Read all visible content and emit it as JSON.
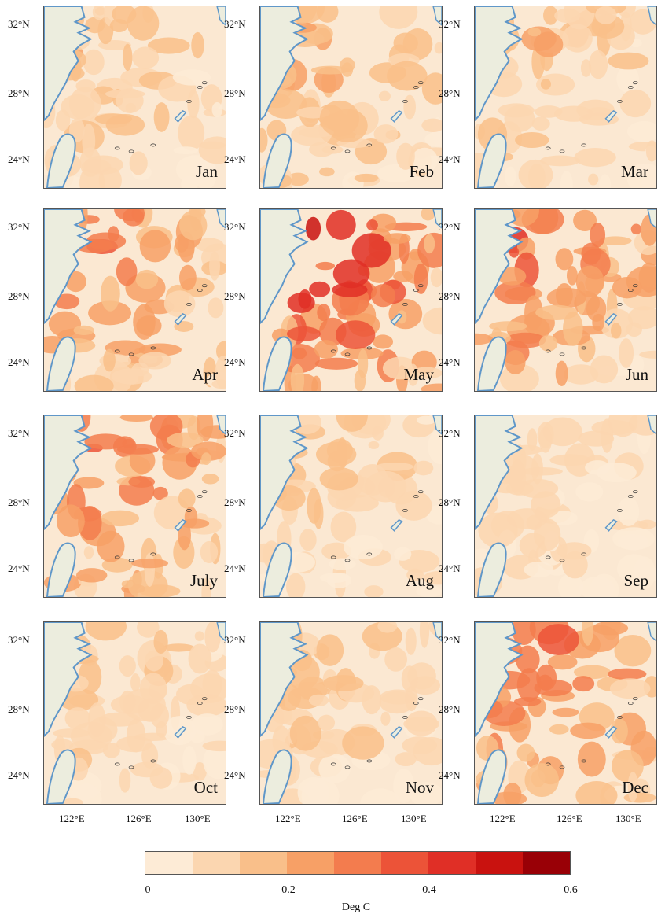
{
  "panels": [
    {
      "month": "Jan",
      "intensity": 0.22
    },
    {
      "month": "Feb",
      "intensity": 0.28
    },
    {
      "month": "Mar",
      "intensity": 0.22
    },
    {
      "month": "Apr",
      "intensity": 0.38
    },
    {
      "month": "May",
      "intensity": 0.55
    },
    {
      "month": "Jun",
      "intensity": 0.42
    },
    {
      "month": "July",
      "intensity": 0.4
    },
    {
      "month": "Aug",
      "intensity": 0.2
    },
    {
      "month": "Sep",
      "intensity": 0.14
    },
    {
      "month": "Oct",
      "intensity": 0.2
    },
    {
      "month": "Nov",
      "intensity": 0.2
    },
    {
      "month": "Dec",
      "intensity": 0.42
    }
  ],
  "lat_labels": [
    "32°N",
    "28°N",
    "24°N"
  ],
  "lon_labels": [
    "122°E",
    "126°E",
    "130°E"
  ],
  "colorbar": {
    "colors": [
      "#fdebd6",
      "#fbd6b0",
      "#f9bf8a",
      "#f7a066",
      "#f37c4e",
      "#ec5338",
      "#e02f26",
      "#c9120f",
      "#990006"
    ],
    "tick_labels": [
      "0",
      "0.2",
      "0.4",
      "0.6"
    ],
    "label": "Deg C"
  },
  "colors": {
    "land": "#ecedde",
    "coast": "#5f97c9",
    "sea": "#fbe8d2"
  }
}
